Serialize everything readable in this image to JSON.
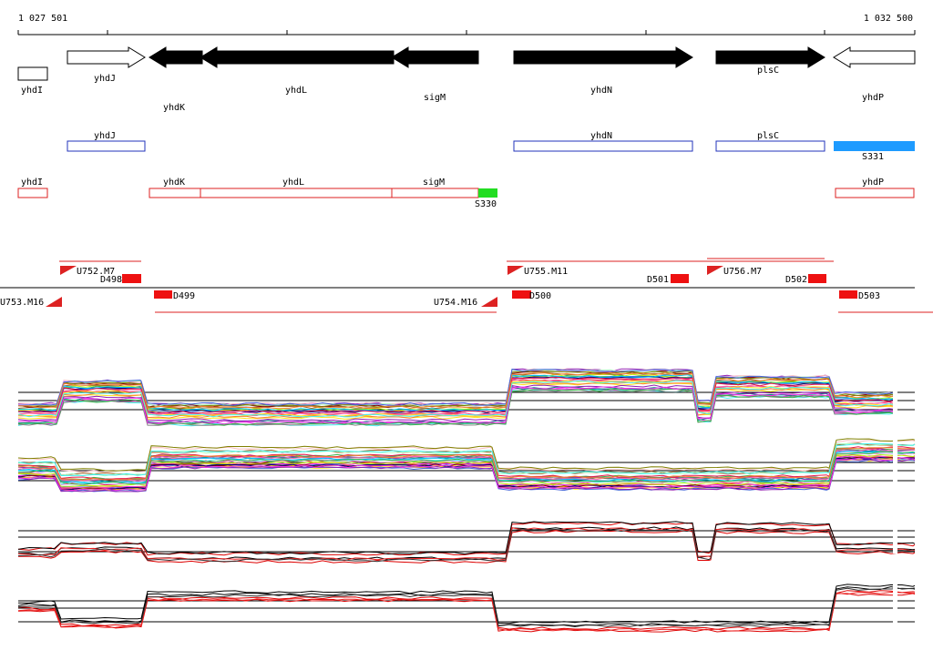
{
  "ruler": {
    "start": "1 027 501",
    "end": "1 032 500"
  },
  "genes": [
    "yhdI",
    "yhdJ",
    "yhdK",
    "yhdL",
    "sigM",
    "yhdN",
    "plsC",
    "yhdP"
  ],
  "track_blue": [
    "yhdJ",
    "yhdN",
    "plsC",
    "S331"
  ],
  "track_red": [
    "yhdI",
    "yhdK",
    "yhdL",
    "sigM",
    "S330",
    "yhdP"
  ],
  "features": [
    "U752.M7",
    "D498",
    "U753.M16",
    "D499",
    "U754.M16",
    "U755.M11",
    "D500",
    "D501",
    "U756.M7",
    "D502",
    "D503"
  ]
}
